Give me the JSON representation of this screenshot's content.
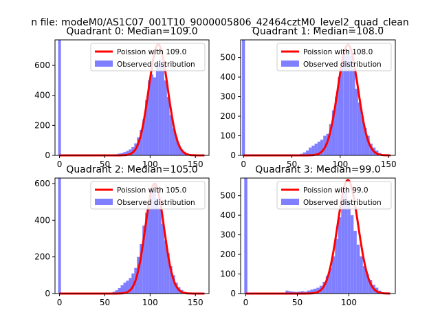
{
  "figure": {
    "suptitle": "n file: modeM0/AS1C07_001T10_9000005806_42464cztM0_level2_quad_clean"
  },
  "colors": {
    "poisson": "#ff0000",
    "histogram": "#7f7fff",
    "axes": "#000000",
    "background": "#ffffff"
  },
  "chart_data": [
    {
      "type": "bar",
      "title": "Quadrant 0: Median=109.0",
      "xlim": [
        -5,
        165
      ],
      "ylim": [
        0,
        770
      ],
      "xticks": [
        0,
        50,
        100,
        150
      ],
      "yticks": [
        0,
        200,
        400,
        600
      ],
      "legend": [
        "Poission with 109.0",
        "Observed distribution"
      ],
      "legend_position": "top-right",
      "median": 109.0,
      "peak": 740,
      "bin_width": 3,
      "bins": [
        [
          0,
          770
        ],
        [
          60,
          6
        ],
        [
          63,
          8
        ],
        [
          66,
          12
        ],
        [
          69,
          15
        ],
        [
          72,
          22
        ],
        [
          75,
          30
        ],
        [
          78,
          40
        ],
        [
          81,
          55
        ],
        [
          84,
          80
        ],
        [
          87,
          120
        ],
        [
          90,
          170
        ],
        [
          93,
          240
        ],
        [
          96,
          370
        ],
        [
          99,
          500
        ],
        [
          102,
          540
        ],
        [
          105,
          520
        ],
        [
          108,
          610
        ],
        [
          111,
          640
        ],
        [
          114,
          600
        ],
        [
          117,
          500
        ],
        [
          120,
          390
        ],
        [
          123,
          270
        ],
        [
          126,
          180
        ],
        [
          129,
          120
        ],
        [
          132,
          70
        ],
        [
          135,
          40
        ],
        [
          138,
          25
        ],
        [
          141,
          14
        ],
        [
          144,
          8
        ]
      ]
    },
    {
      "type": "bar",
      "title": "Quadrant 1: Median=108.0",
      "xlim": [
        -3,
        157
      ],
      "ylim": [
        0,
        590
      ],
      "xticks": [
        0,
        50,
        100,
        150
      ],
      "yticks": [
        0,
        100,
        200,
        300,
        400,
        500
      ],
      "legend": [
        "Poission with 108.0",
        "Observed distribution"
      ],
      "legend_position": "top-right",
      "median": 108.0,
      "peak": 565,
      "bin_width": 3,
      "bins": [
        [
          0,
          590
        ],
        [
          60,
          8
        ],
        [
          63,
          15
        ],
        [
          66,
          25
        ],
        [
          69,
          40
        ],
        [
          72,
          50
        ],
        [
          75,
          60
        ],
        [
          78,
          70
        ],
        [
          81,
          80
        ],
        [
          84,
          100
        ],
        [
          87,
          110
        ],
        [
          90,
          160
        ],
        [
          93,
          230
        ],
        [
          96,
          300
        ],
        [
          99,
          400
        ],
        [
          102,
          460
        ],
        [
          105,
          510
        ],
        [
          108,
          540
        ],
        [
          111,
          510
        ],
        [
          114,
          440
        ],
        [
          117,
          340
        ],
        [
          120,
          270
        ],
        [
          123,
          200
        ],
        [
          126,
          140
        ],
        [
          129,
          100
        ],
        [
          132,
          60
        ],
        [
          135,
          40
        ],
        [
          138,
          25
        ],
        [
          141,
          12
        ]
      ]
    },
    {
      "type": "bar",
      "title": "Quadrant 2: Median=105.0",
      "xlim": [
        -5,
        165
      ],
      "ylim": [
        0,
        630
      ],
      "xticks": [
        0,
        50,
        100,
        150
      ],
      "yticks": [
        0,
        200,
        400,
        600
      ],
      "legend": [
        "Poission with 105.0",
        "Observed distribution"
      ],
      "legend_position": "top-right",
      "median": 105.0,
      "peak": 600,
      "bin_width": 3,
      "bins": [
        [
          0,
          630
        ],
        [
          60,
          10
        ],
        [
          63,
          18
        ],
        [
          66,
          30
        ],
        [
          69,
          45
        ],
        [
          72,
          60
        ],
        [
          75,
          70
        ],
        [
          78,
          85
        ],
        [
          81,
          110
        ],
        [
          84,
          140
        ],
        [
          87,
          200
        ],
        [
          90,
          270
        ],
        [
          93,
          370
        ],
        [
          96,
          440
        ],
        [
          99,
          480
        ],
        [
          102,
          560
        ],
        [
          105,
          600
        ],
        [
          108,
          520
        ],
        [
          111,
          470
        ],
        [
          114,
          380
        ],
        [
          117,
          290
        ],
        [
          120,
          220
        ],
        [
          123,
          150
        ],
        [
          126,
          100
        ],
        [
          129,
          60
        ],
        [
          132,
          35
        ],
        [
          135,
          20
        ],
        [
          138,
          10
        ]
      ]
    },
    {
      "type": "bar",
      "title": "Quadrant 3: Median=99.0",
      "xlim": [
        -5,
        145
      ],
      "ylim": [
        0,
        590
      ],
      "xticks": [
        0,
        50,
        100
      ],
      "yticks": [
        0,
        100,
        200,
        300,
        400,
        500
      ],
      "legend": [
        "Poission with 99.0",
        "Observed distribution"
      ],
      "legend_position": "top-right",
      "median": 99.0,
      "peak": 580,
      "bin_width": 3,
      "bins": [
        [
          0,
          590
        ],
        [
          40,
          15
        ],
        [
          43,
          12
        ],
        [
          46,
          10
        ],
        [
          49,
          8
        ],
        [
          52,
          10
        ],
        [
          55,
          12
        ],
        [
          58,
          10
        ],
        [
          61,
          15
        ],
        [
          64,
          20
        ],
        [
          67,
          25
        ],
        [
          70,
          30
        ],
        [
          73,
          40
        ],
        [
          76,
          60
        ],
        [
          79,
          90
        ],
        [
          82,
          130
        ],
        [
          85,
          190
        ],
        [
          88,
          280
        ],
        [
          91,
          390
        ],
        [
          94,
          500
        ],
        [
          97,
          540
        ],
        [
          100,
          470
        ],
        [
          103,
          400
        ],
        [
          106,
          320
        ],
        [
          109,
          250
        ],
        [
          112,
          190
        ],
        [
          115,
          140
        ],
        [
          118,
          100
        ],
        [
          121,
          70
        ],
        [
          124,
          45
        ],
        [
          127,
          30
        ],
        [
          130,
          15
        ]
      ]
    }
  ]
}
